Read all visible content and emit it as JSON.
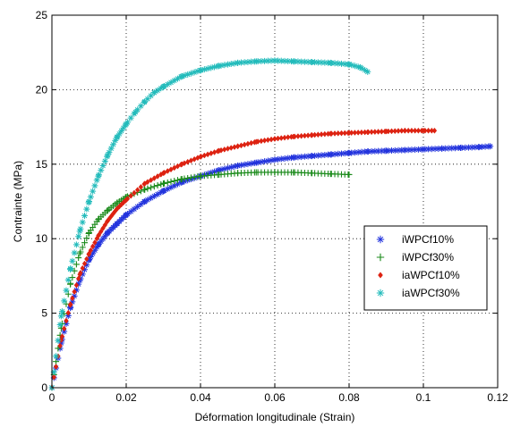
{
  "chart_data": {
    "type": "scatter",
    "title": "",
    "xlabel": "Déformation longitudinale (Strain)",
    "ylabel": "Contrainte (MPa)",
    "xlim": [
      0,
      0.12
    ],
    "ylim": [
      0,
      25
    ],
    "xticks": [
      "0",
      "0.02",
      "0.04",
      "0.06",
      "0.08",
      "0.1",
      "0.12"
    ],
    "yticks": [
      "0",
      "5",
      "10",
      "15",
      "20",
      "25"
    ],
    "xtick_values": [
      0,
      0.02,
      0.04,
      0.06,
      0.08,
      0.1,
      0.12
    ],
    "ytick_values": [
      0,
      5,
      10,
      15,
      20,
      25
    ],
    "grid": true,
    "legend_position": "right",
    "series": [
      {
        "name": "iWPCf10%",
        "marker": "asterisk",
        "color": "#2233dd",
        "x": [
          0,
          0.0025,
          0.005,
          0.0075,
          0.01,
          0.0125,
          0.015,
          0.0175,
          0.02,
          0.025,
          0.03,
          0.035,
          0.04,
          0.045,
          0.05,
          0.055,
          0.06,
          0.065,
          0.07,
          0.075,
          0.08,
          0.085,
          0.09,
          0.095,
          0.1,
          0.105,
          0.11,
          0.115,
          0.118
        ],
        "y": [
          0,
          3.0,
          5.4,
          7.2,
          8.6,
          9.6,
          10.4,
          11.0,
          11.6,
          12.5,
          13.2,
          13.8,
          14.2,
          14.6,
          14.9,
          15.1,
          15.3,
          15.45,
          15.55,
          15.65,
          15.75,
          15.85,
          15.9,
          15.95,
          16.0,
          16.05,
          16.1,
          16.15,
          16.2
        ]
      },
      {
        "name": "iWPCf30%",
        "marker": "plus",
        "color": "#1a8a1a",
        "x": [
          0,
          0.0025,
          0.005,
          0.0075,
          0.01,
          0.0125,
          0.015,
          0.0175,
          0.02,
          0.025,
          0.03,
          0.035,
          0.04,
          0.045,
          0.05,
          0.055,
          0.06,
          0.065,
          0.07,
          0.075,
          0.08
        ],
        "y": [
          0,
          4.0,
          7.0,
          9.0,
          10.4,
          11.3,
          11.9,
          12.4,
          12.8,
          13.3,
          13.7,
          14.0,
          14.2,
          14.3,
          14.4,
          14.45,
          14.45,
          14.45,
          14.4,
          14.35,
          14.3
        ]
      },
      {
        "name": "iaWPCf10%",
        "marker": "diamond",
        "color": "#dd2211",
        "x": [
          0,
          0.0025,
          0.005,
          0.0075,
          0.01,
          0.0125,
          0.015,
          0.0175,
          0.02,
          0.025,
          0.03,
          0.035,
          0.04,
          0.045,
          0.05,
          0.055,
          0.06,
          0.065,
          0.07,
          0.075,
          0.08,
          0.085,
          0.09,
          0.095,
          0.1,
          0.103
        ],
        "y": [
          0,
          3.2,
          5.6,
          7.6,
          9.0,
          10.2,
          11.2,
          12.0,
          12.6,
          13.7,
          14.4,
          15.0,
          15.5,
          15.9,
          16.2,
          16.5,
          16.7,
          16.85,
          16.95,
          17.05,
          17.1,
          17.15,
          17.2,
          17.25,
          17.25,
          17.25
        ]
      },
      {
        "name": "iaWPCf30%",
        "marker": "asterisk",
        "color": "#22bbbb",
        "x": [
          0,
          0.0025,
          0.005,
          0.0075,
          0.01,
          0.0125,
          0.015,
          0.0175,
          0.02,
          0.0225,
          0.025,
          0.0275,
          0.03,
          0.035,
          0.04,
          0.045,
          0.05,
          0.055,
          0.06,
          0.065,
          0.07,
          0.075,
          0.08,
          0.083,
          0.085
        ],
        "y": [
          0,
          4.8,
          8.0,
          10.5,
          12.5,
          14.2,
          15.6,
          16.8,
          17.7,
          18.5,
          19.2,
          19.8,
          20.2,
          20.9,
          21.3,
          21.6,
          21.8,
          21.9,
          21.95,
          21.9,
          21.85,
          21.8,
          21.7,
          21.5,
          21.2
        ]
      }
    ]
  }
}
